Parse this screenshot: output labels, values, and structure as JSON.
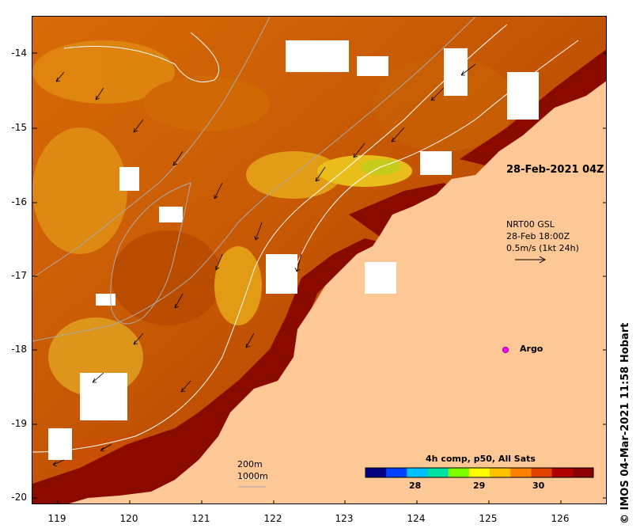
{
  "map": {
    "lat_ticks": [
      "-14",
      "-15",
      "-16",
      "-17",
      "-18",
      "-19",
      "-20"
    ],
    "lon_ticks": [
      "119",
      "120",
      "121",
      "122",
      "123",
      "124",
      "125",
      "126"
    ],
    "annotation_date": "28-Feb-2021 04Z",
    "current_legend": {
      "line1": "NRT00 GSL",
      "line2": "28-Feb 18:00Z",
      "line3": "0.5m/s (1kt 24h)"
    },
    "argo_label": "Argo",
    "isobath_labels": [
      "200m",
      "1000m"
    ],
    "colorbar": {
      "title": "4h comp, p50, All Sats",
      "ticks": [
        "28",
        "29",
        "30"
      ],
      "colors": [
        "#000080",
        "#0040ff",
        "#00c0ff",
        "#00e0a0",
        "#80ff00",
        "#ffff00",
        "#ffc000",
        "#ff8000",
        "#e04000",
        "#b00000",
        "#8b0000"
      ]
    },
    "credit": "© IMOS 04-Mar-2021 11:58 Hobart",
    "colors": {
      "land": "#fdc896",
      "warm": "#8b0a00",
      "mid": "#d05a00",
      "cool": "#e89010"
    }
  }
}
